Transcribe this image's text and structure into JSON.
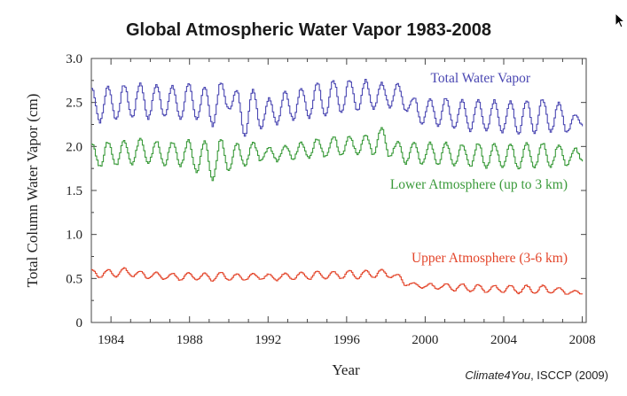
{
  "chart_data": {
    "type": "line",
    "title": "Global Atmospheric Water Vapor 1983-2008",
    "xlabel": "Year",
    "ylabel": "Total Column Water Vapor (cm)",
    "xlim": [
      1983,
      2008.2
    ],
    "ylim": [
      0,
      3.0
    ],
    "x_ticks": [
      1984,
      1988,
      1992,
      1996,
      2000,
      2004,
      2008
    ],
    "x_minor_step": 1,
    "y_ticks": [
      0,
      0.5,
      1.0,
      1.5,
      2.0,
      2.5,
      3.0
    ],
    "y_tick_labels": [
      "0",
      "0.5",
      "1.0",
      "1.5",
      "2.0",
      "2.5",
      "3.0"
    ],
    "grid": false,
    "line_style": "stepped monthly",
    "series": [
      {
        "name": "Total Water Vapor",
        "label_position": "upper-right",
        "color": "#4a47b2",
        "x_start": 1983.0,
        "x_end": 2008.0,
        "values": [
          2.66,
          2.28,
          2.68,
          2.31,
          2.7,
          2.33,
          2.72,
          2.32,
          2.7,
          2.35,
          2.68,
          2.31,
          2.72,
          2.3,
          2.68,
          2.24,
          2.72,
          2.42,
          2.63,
          2.13,
          2.65,
          2.21,
          2.55,
          2.26,
          2.62,
          2.31,
          2.66,
          2.33,
          2.72,
          2.34,
          2.75,
          2.38,
          2.76,
          2.41,
          2.75,
          2.43,
          2.72,
          2.45,
          2.72,
          2.4,
          2.56,
          2.26,
          2.53,
          2.24,
          2.55,
          2.2,
          2.52,
          2.18,
          2.53,
          2.17,
          2.52,
          2.16,
          2.52,
          2.14,
          2.53,
          2.16,
          2.54,
          2.16,
          2.5,
          2.16,
          2.37,
          2.23
        ]
      },
      {
        "name": "Lower Atmosphere (up to 3 km)",
        "label_position": "middle-right",
        "color": "#3a9a3a",
        "x_start": 1983.0,
        "x_end": 2008.0,
        "values": [
          2.04,
          1.77,
          2.05,
          1.79,
          2.07,
          1.8,
          2.09,
          1.8,
          2.06,
          1.79,
          2.05,
          1.78,
          2.07,
          1.71,
          2.05,
          1.62,
          2.08,
          1.72,
          2.03,
          1.78,
          2.05,
          1.83,
          1.99,
          1.84,
          2.02,
          1.86,
          2.05,
          1.87,
          2.09,
          1.88,
          2.11,
          1.9,
          2.12,
          1.91,
          2.13,
          1.91,
          2.22,
          1.88,
          2.05,
          1.81,
          2.05,
          1.79,
          2.04,
          1.79,
          2.04,
          1.78,
          2.03,
          1.77,
          2.04,
          1.76,
          2.03,
          1.76,
          2.03,
          1.75,
          2.03,
          1.76,
          2.04,
          1.77,
          2.02,
          1.78,
          1.98,
          1.83
        ]
      },
      {
        "name": "Upper Atmosphere (3-6 km)",
        "label_position": "lower-right",
        "color": "#e3452a",
        "x_start": 1983.0,
        "x_end": 2008.0,
        "values": [
          0.6,
          0.51,
          0.6,
          0.52,
          0.62,
          0.52,
          0.58,
          0.5,
          0.57,
          0.49,
          0.56,
          0.48,
          0.57,
          0.48,
          0.56,
          0.47,
          0.57,
          0.48,
          0.55,
          0.48,
          0.56,
          0.49,
          0.55,
          0.48,
          0.56,
          0.49,
          0.57,
          0.49,
          0.58,
          0.5,
          0.58,
          0.5,
          0.59,
          0.5,
          0.59,
          0.51,
          0.6,
          0.51,
          0.55,
          0.42,
          0.45,
          0.39,
          0.44,
          0.38,
          0.44,
          0.36,
          0.44,
          0.35,
          0.43,
          0.34,
          0.42,
          0.34,
          0.42,
          0.33,
          0.42,
          0.33,
          0.42,
          0.33,
          0.4,
          0.32,
          0.36,
          0.32
        ]
      }
    ]
  },
  "credit": {
    "source_italic": "Climate4You",
    "source_rest": ", ISCCP (2009)"
  }
}
